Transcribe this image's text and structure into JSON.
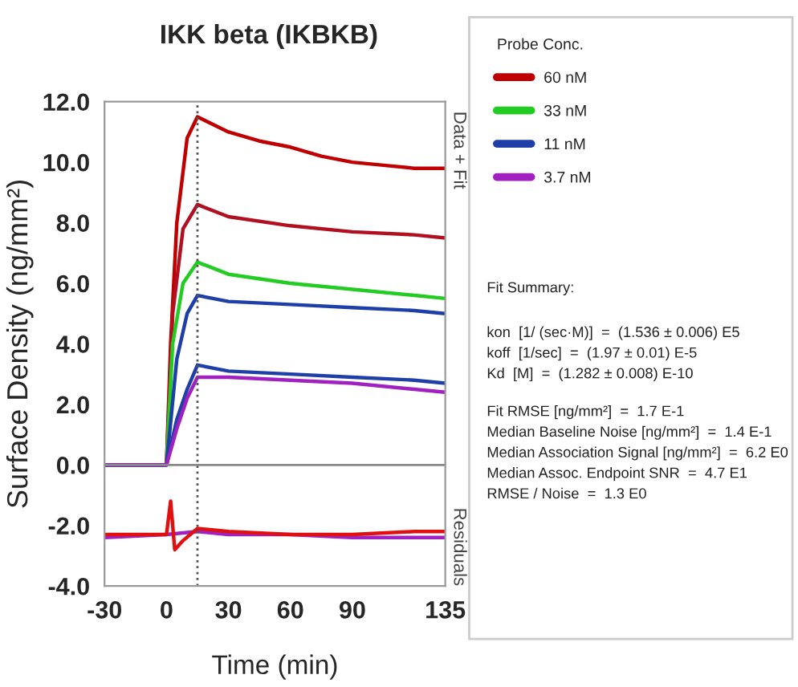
{
  "chart_data": {
    "type": "line",
    "title": "IKK beta (IKBKB)",
    "xlabel": "Time (min)",
    "ylabel": "Surface Density (ng/mm²)",
    "legend_title": "Probe Conc.",
    "legend": "right",
    "grid": false,
    "marker": "none",
    "line_style": "solid",
    "xlim": [
      -30,
      135
    ],
    "xticks": [
      -30,
      0,
      30,
      60,
      90,
      135
    ],
    "ylim": [
      -4,
      12
    ],
    "yticks": [
      {
        "value": -4,
        "label": "-4.0"
      },
      {
        "value": -2,
        "label": "-2.0"
      },
      {
        "value": 0,
        "label": "0.0"
      },
      {
        "value": 2,
        "label": "2.0"
      },
      {
        "value": 4,
        "label": "4.0"
      },
      {
        "value": 6,
        "label": "6.0"
      },
      {
        "value": 8,
        "label": "8.0"
      },
      {
        "value": 10,
        "label": "10.0"
      },
      {
        "value": 12,
        "label": "12.0"
      }
    ],
    "ref_lines": [
      {
        "axis": "x",
        "value": 15,
        "line_style": "dotted",
        "color": "#555555"
      },
      {
        "axis": "y",
        "value": 0,
        "line_style": "solid",
        "color": "#888888"
      }
    ],
    "series": [
      {
        "name": "60 nM",
        "color": "#c00000",
        "x": [
          -30,
          0,
          2,
          5,
          10,
          15,
          30,
          45,
          60,
          75,
          90,
          105,
          120,
          135
        ],
        "values": [
          0,
          0,
          4,
          8,
          10.8,
          11.5,
          11,
          10.7,
          10.5,
          10.2,
          10,
          9.9,
          9.8,
          9.8
        ]
      },
      {
        "color": "#b01020",
        "x": [
          -30,
          0,
          3,
          8,
          15,
          30,
          60,
          90,
          120,
          135
        ],
        "values": [
          0,
          0,
          5,
          7.8,
          8.6,
          8.2,
          7.9,
          7.7,
          7.6,
          7.5
        ]
      },
      {
        "name": "33 nM",
        "color": "#22cc22",
        "x": [
          -30,
          0,
          3,
          8,
          15,
          30,
          60,
          90,
          120,
          135
        ],
        "values": [
          0,
          0,
          4,
          6,
          6.7,
          6.3,
          6,
          5.8,
          5.6,
          5.5
        ]
      },
      {
        "name": "11 nM",
        "color": "#1f3fa8",
        "x": [
          -30,
          0,
          5,
          10,
          15,
          30,
          60,
          90,
          120,
          135
        ],
        "values": [
          0,
          0,
          3.5,
          5,
          5.6,
          5.4,
          5.3,
          5.2,
          5.1,
          5
        ]
      },
      {
        "color": "#1f3fa8",
        "x": [
          -30,
          0,
          5,
          10,
          15,
          30,
          60,
          90,
          120,
          135
        ],
        "values": [
          0,
          0,
          1.5,
          2.5,
          3.3,
          3.1,
          3,
          2.9,
          2.8,
          2.7
        ]
      },
      {
        "name": "3.7 nM",
        "color": "#a020c0",
        "x": [
          -30,
          0,
          5,
          10,
          15,
          30,
          60,
          90,
          120,
          135
        ],
        "values": [
          0,
          0,
          1.2,
          2.2,
          2.9,
          2.9,
          2.8,
          2.7,
          2.5,
          2.4
        ]
      },
      {
        "color": "#a020c0",
        "x": [
          -30,
          0,
          15,
          30,
          60,
          90,
          120,
          135
        ],
        "values": [
          -2.4,
          -2.3,
          -2.2,
          -2.3,
          -2.3,
          -2.4,
          -2.4,
          -2.4
        ]
      },
      {
        "color": "#e01010",
        "x": [
          -30,
          0,
          2,
          4,
          8,
          15,
          30,
          60,
          90,
          120,
          135
        ],
        "values": [
          -2.3,
          -2.3,
          -1.2,
          -2.8,
          -2.5,
          -2.1,
          -2.2,
          -2.3,
          -2.3,
          -2.2,
          -2.2
        ]
      }
    ],
    "annotations": [
      "Data + Fit",
      "Residuals",
      "Fit Summary:",
      "kon  [1/ (sec·M)]  =  (1.536 ± 0.006) E5",
      "koff  [1/sec]  =  (1.97 ± 0.01) E-5",
      "Kd  [M]  =  (1.282 ± 0.008) E-10",
      "Fit RMSE [ng/mm²]  =  1.7 E-1",
      "Median Baseline Noise [ng/mm²]  =  1.4 E-1",
      "Median Association Signal [ng/mm²]  =  6.2 E0",
      "Median Assoc. Endpoint SNR  =  4.7 E1",
      "RMSE / Noise  =  1.3 E0"
    ]
  }
}
